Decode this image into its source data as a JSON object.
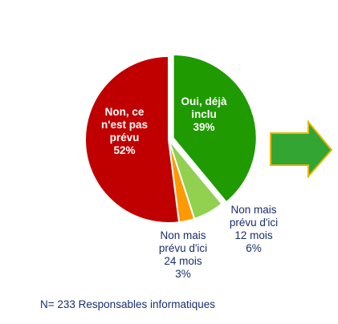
{
  "chart_data": {
    "type": "pie",
    "slices": [
      {
        "label_lines": [
          "Oui, déjà",
          "inclu"
        ],
        "percent_label": "39%",
        "value": 39,
        "color": "#1f9a00",
        "exploded": true,
        "label_position": "inside"
      },
      {
        "label_lines": [
          "Non mais",
          "prévu d'ici",
          "12 mois"
        ],
        "percent_label": "6%",
        "value": 6,
        "color": "#92d050",
        "exploded": false,
        "label_position": "outside"
      },
      {
        "label_lines": [
          "Non mais",
          "prévu d'ici",
          "24 mois"
        ],
        "percent_label": "3%",
        "value": 3,
        "color": "#ff9900",
        "exploded": false,
        "label_position": "outside"
      },
      {
        "label_lines": [
          "Non, ce",
          "n'est pas",
          "prévu"
        ],
        "percent_label": "52%",
        "value": 52,
        "color": "#c00000",
        "exploded": false,
        "label_position": "inside"
      }
    ],
    "start_angle_deg": 0,
    "direction": "clockwise",
    "title": "",
    "legend": "none"
  },
  "footnote": "N= 233 Responsables informatiques",
  "arrow": {
    "icon": "right-arrow-icon",
    "fill": "#33a533",
    "stroke": "#e6b800"
  }
}
